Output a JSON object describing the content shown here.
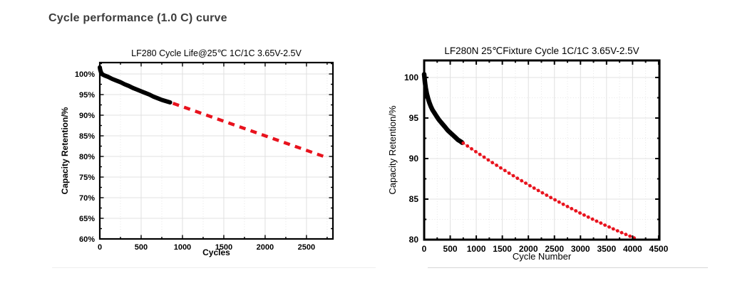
{
  "page": {
    "title": "Cycle performance (1.0 C) curve"
  },
  "colors": {
    "series_black": "#000000",
    "series_red": "#e8121d",
    "red_connector": "#ef4b4b",
    "grid_major": "#e0e0e0",
    "grid_minor": "#e6e6e6",
    "frame": "#000000",
    "page_title_text": "#3c3c3c"
  },
  "chart_data": [
    {
      "type": "scatter",
      "title": "LF280  Cycle Life@25℃ 1C/1C 3.65V-2.5V",
      "xlabel": "Cycles",
      "ylabel": "Capacity Retention/%",
      "xlim": [
        0,
        2820
      ],
      "ylim": [
        60,
        102.76
      ],
      "xticks": [
        0,
        500,
        1000,
        1500,
        2000,
        2500
      ],
      "yticks": [
        60,
        65,
        70,
        75,
        80,
        85,
        90,
        95,
        100
      ],
      "ytick_suffix": "%",
      "x_minor_step": 250,
      "y_minor_step": 2.5,
      "grid": "on",
      "legend": "none",
      "series": [
        {
          "name": "measured (black markers)",
          "style": "band",
          "color": "#000000",
          "points": [
            [
              0,
              101.6
            ],
            [
              5,
              101.0
            ],
            [
              15,
              100.4
            ],
            [
              30,
              99.9
            ],
            [
              60,
              99.6
            ],
            [
              100,
              99.3
            ],
            [
              150,
              98.8
            ],
            [
              200,
              98.4
            ],
            [
              250,
              98.0
            ],
            [
              300,
              97.5
            ],
            [
              350,
              97.1
            ],
            [
              400,
              96.6
            ],
            [
              450,
              96.2
            ],
            [
              500,
              95.8
            ],
            [
              550,
              95.4
            ],
            [
              600,
              95.0
            ],
            [
              650,
              94.5
            ],
            [
              700,
              94.1
            ],
            [
              750,
              93.7
            ],
            [
              800,
              93.4
            ],
            [
              850,
              93.1
            ]
          ]
        },
        {
          "name": "projected (red dashed)",
          "style": "dashed",
          "color": "#e8121d",
          "points": [
            [
              885,
              92.9
            ],
            [
              2710,
              80.0
            ]
          ]
        }
      ]
    },
    {
      "type": "scatter",
      "title": "LF280N 25℃Fixture Cycle 1C/1C 3.65V-2.5V",
      "xlabel": "Cycle Number",
      "ylabel": "Capacity Retention/%",
      "xlim": [
        0,
        4515
      ],
      "ylim": [
        80,
        102.1
      ],
      "xticks": [
        0,
        500,
        1000,
        1500,
        2000,
        2500,
        3000,
        3500,
        4000,
        4500
      ],
      "yticks": [
        80,
        85,
        90,
        95,
        100
      ],
      "ytick_suffix": "",
      "x_minor_step": 250,
      "y_minor_step": 2.5,
      "grid": "on",
      "legend": "none",
      "series": [
        {
          "name": "measured (black markers)",
          "style": "band",
          "color": "#000000",
          "points": [
            [
              0,
              100.4
            ],
            [
              15,
              99.4
            ],
            [
              30,
              98.7
            ],
            [
              50,
              98.0
            ],
            [
              75,
              97.4
            ],
            [
              100,
              96.9
            ],
            [
              130,
              96.4
            ],
            [
              160,
              96.0
            ],
            [
              200,
              95.6
            ],
            [
              240,
              95.2
            ],
            [
              280,
              94.8
            ],
            [
              320,
              94.5
            ],
            [
              360,
              94.2
            ],
            [
              400,
              93.9
            ],
            [
              450,
              93.5
            ],
            [
              500,
              93.2
            ],
            [
              550,
              92.9
            ],
            [
              600,
              92.6
            ],
            [
              650,
              92.3
            ],
            [
              700,
              92.1
            ],
            [
              730,
              91.95
            ]
          ]
        },
        {
          "name": "projected (red dots)",
          "style": "dots",
          "color": "#e8121d",
          "points": [
            [
              750,
              91.9
            ],
            [
              830,
              91.55
            ],
            [
              910,
              91.2
            ],
            [
              990,
              90.85
            ],
            [
              1070,
              90.51
            ],
            [
              1150,
              90.17
            ],
            [
              1230,
              89.83
            ],
            [
              1310,
              89.5
            ],
            [
              1390,
              89.17
            ],
            [
              1470,
              88.84
            ],
            [
              1550,
              88.52
            ],
            [
              1630,
              88.2
            ],
            [
              1710,
              87.88
            ],
            [
              1790,
              87.57
            ],
            [
              1870,
              87.26
            ],
            [
              1950,
              86.96
            ],
            [
              2030,
              86.65
            ],
            [
              2110,
              86.36
            ],
            [
              2190,
              86.06
            ],
            [
              2270,
              85.77
            ],
            [
              2350,
              85.48
            ],
            [
              2430,
              85.19
            ],
            [
              2510,
              84.91
            ],
            [
              2590,
              84.63
            ],
            [
              2670,
              84.36
            ],
            [
              2750,
              84.09
            ],
            [
              2830,
              83.82
            ],
            [
              2910,
              83.55
            ],
            [
              2990,
              83.29
            ],
            [
              3070,
              83.03
            ],
            [
              3150,
              82.78
            ],
            [
              3230,
              82.53
            ],
            [
              3310,
              82.28
            ],
            [
              3390,
              82.04
            ],
            [
              3470,
              81.79
            ],
            [
              3550,
              81.56
            ],
            [
              3630,
              81.32
            ],
            [
              3710,
              81.09
            ],
            [
              3790,
              80.86
            ],
            [
              3870,
              80.64
            ],
            [
              3950,
              80.42
            ],
            [
              4030,
              80.2
            ]
          ]
        }
      ]
    }
  ]
}
